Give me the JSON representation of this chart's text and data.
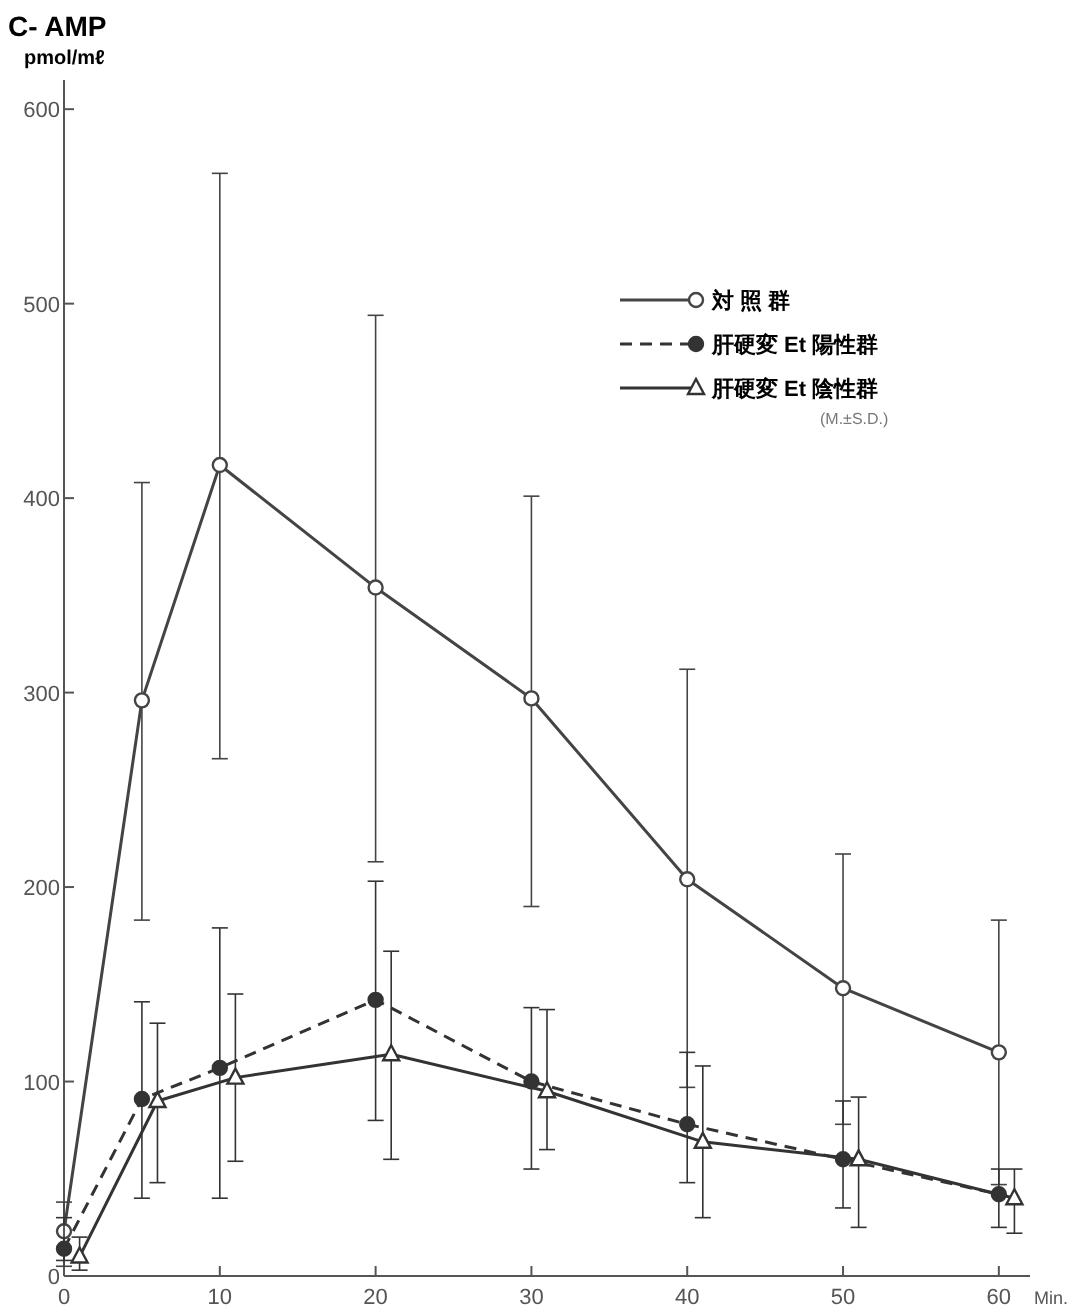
{
  "chart_data": {
    "type": "line",
    "title": "C- AMP",
    "ylabel": "pmol/mℓ",
    "xlabel": "Min.",
    "xlim": [
      0,
      62
    ],
    "ylim": [
      0,
      615
    ],
    "xticks": [
      0,
      10,
      20,
      30,
      40,
      50,
      60
    ],
    "yticks": [
      0,
      100,
      200,
      300,
      400,
      500,
      600
    ],
    "legend": "top right",
    "annotations": [
      "(M.±S.D.)"
    ],
    "series": [
      {
        "name": "対 照 群",
        "color": "#444444",
        "marker": "circle",
        "line_style": "solid",
        "x": [
          0,
          5,
          10,
          20,
          30,
          40,
          50,
          60
        ],
        "values": [
          23,
          296,
          417,
          354,
          297,
          204,
          148,
          115
        ],
        "errors": [
          [
            5,
            38
          ],
          [
            183,
            408
          ],
          [
            266,
            567
          ],
          [
            213,
            494
          ],
          [
            190,
            401
          ],
          [
            97,
            312
          ],
          [
            78,
            217
          ],
          [
            47,
            183
          ]
        ]
      },
      {
        "name": "肝硬変 Et 陽性群",
        "color": "#333333",
        "marker": "circle",
        "line_style": "dashed",
        "x": [
          0,
          5,
          10,
          20,
          30,
          40,
          50,
          60
        ],
        "values": [
          14,
          91,
          107,
          142,
          100,
          78,
          60,
          42
        ],
        "errors": [
          [
            8,
            30
          ],
          [
            40,
            141
          ],
          [
            40,
            179
          ],
          [
            80,
            203
          ],
          [
            55,
            138
          ],
          [
            48,
            115
          ],
          [
            35,
            90
          ],
          [
            25,
            55
          ]
        ]
      },
      {
        "name": "肝硬変 Et 陰性群",
        "color": "#333333",
        "marker": "triangle",
        "line_style": "solid",
        "x": [
          1,
          6,
          11,
          21,
          31,
          41,
          51,
          61
        ],
        "values": [
          10,
          90,
          102,
          114,
          95,
          69,
          60,
          40
        ],
        "errors": [
          [
            3,
            20
          ],
          [
            48,
            130
          ],
          [
            59,
            145
          ],
          [
            60,
            167
          ],
          [
            65,
            137
          ],
          [
            30,
            108
          ],
          [
            25,
            92
          ],
          [
            22,
            55
          ]
        ]
      }
    ]
  }
}
